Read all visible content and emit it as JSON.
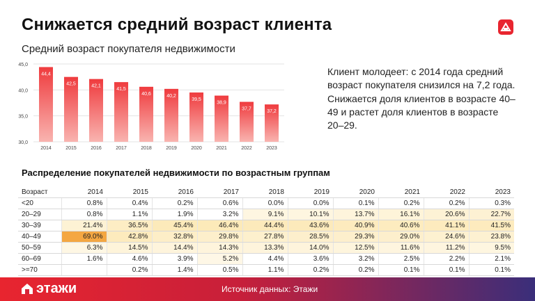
{
  "title": "Снижается средний возраст клиента",
  "logo_text": "этажи",
  "source": "Источник данных: Этажи",
  "notes": [
    "Клиент молодеет: с 2014 года средний возраст покупателя снизился на 7,2 года.",
    "Снижается доля клиентов в возрасте 40–49 и растет доля клиентов в возрасте 20–29."
  ],
  "colors": {
    "accent": "#e8252f",
    "bar_top": "#ef3b3e",
    "bar_bottom": "#f9b4b0",
    "highlight": "#f4a742"
  },
  "chart_data": {
    "type": "bar",
    "title": "Средний возраст покупателя недвижимости",
    "categories": [
      "2014",
      "2015",
      "2016",
      "2017",
      "2018",
      "2019",
      "2020",
      "2021",
      "2022",
      "2023"
    ],
    "values": [
      44.4,
      42.5,
      42.1,
      41.5,
      40.6,
      40.2,
      39.5,
      38.9,
      37.7,
      37.2
    ],
    "value_labels": [
      "44,4",
      "42,5",
      "42,1",
      "41,5",
      "40,6",
      "40,2",
      "39,5",
      "38,9",
      "37,7",
      "37,2"
    ],
    "ylim": [
      30,
      45
    ],
    "yticks": [
      "30,0",
      "35,0",
      "40,0",
      "45,0"
    ],
    "ytick_values": [
      30,
      35,
      40,
      45
    ],
    "grid": true
  },
  "table": {
    "title": "Распределение покупателей недвижимости по возрастным группам",
    "header": [
      "Возраст",
      "2014",
      "2015",
      "2016",
      "2017",
      "2018",
      "2019",
      "2020",
      "2021",
      "2022",
      "2023"
    ],
    "rows": [
      {
        "label": "<20",
        "values": [
          "0.8%",
          "0.4%",
          "0.2%",
          "0.6%",
          "0.0%",
          "0.0%",
          "0.1%",
          "0.2%",
          "0.2%",
          "0.3%"
        ]
      },
      {
        "label": "20–29",
        "values": [
          "0.8%",
          "1.1%",
          "1.9%",
          "3.2%",
          "9.1%",
          "10.1%",
          "13.7%",
          "16.1%",
          "20.6%",
          "22.7%"
        ]
      },
      {
        "label": "30–39",
        "values": [
          "21.4%",
          "36.5%",
          "45.4%",
          "46.4%",
          "44.4%",
          "43.6%",
          "40.9%",
          "40.6%",
          "41.1%",
          "41.5%"
        ]
      },
      {
        "label": "40–49",
        "values": [
          "69.0%",
          "42.8%",
          "32.8%",
          "29.8%",
          "27.8%",
          "28.5%",
          "29.3%",
          "29.0%",
          "24.6%",
          "23.8%"
        ]
      },
      {
        "label": "50–59",
        "values": [
          "6.3%",
          "14.5%",
          "14.4%",
          "14.3%",
          "13.3%",
          "14.0%",
          "12.5%",
          "11.6%",
          "11.2%",
          "9.5%"
        ]
      },
      {
        "label": "60–69",
        "values": [
          "1.6%",
          "4.6%",
          "3.9%",
          "5.2%",
          "4.4%",
          "3.6%",
          "3.2%",
          "2.5%",
          "2.2%",
          "2.1%"
        ]
      },
      {
        "label": ">=70",
        "values": [
          "",
          "0.2%",
          "1.4%",
          "0.5%",
          "1.1%",
          "0.2%",
          "0.2%",
          "0.1%",
          "0.1%",
          "0.1%"
        ]
      }
    ]
  }
}
